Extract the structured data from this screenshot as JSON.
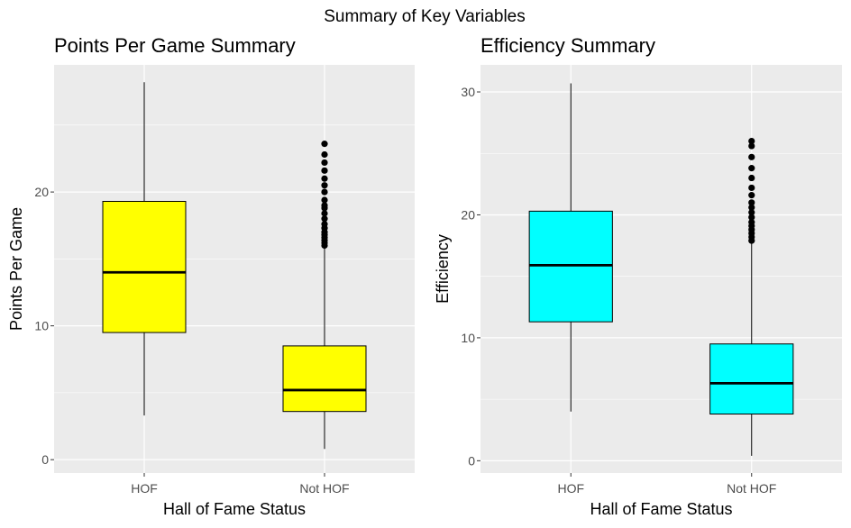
{
  "figure": {
    "title": "Summary of Key Variables"
  },
  "chart_data": [
    {
      "type": "box",
      "title": "Points Per Game Summary",
      "xlabel": "Hall of Fame Status",
      "ylabel": "Points Per Game",
      "categories": [
        "HOF",
        "Not HOF"
      ],
      "ylim": [
        -1.0,
        29.5
      ],
      "yticks": [
        0,
        10,
        20
      ],
      "fill_color": "#ffff00",
      "panel_bg": "#ebebeb",
      "boxes": [
        {
          "category": "HOF",
          "min": 3.3,
          "q1": 9.5,
          "median": 14.0,
          "q3": 19.3,
          "max": 28.2,
          "outliers": []
        },
        {
          "category": "Not HOF",
          "min": 0.8,
          "q1": 3.6,
          "median": 5.2,
          "q3": 8.5,
          "max": 15.8,
          "outliers": [
            16.0,
            16.2,
            16.4,
            16.6,
            16.8,
            17.0,
            17.3,
            17.6,
            18.0,
            18.4,
            18.8,
            19.0,
            19.4,
            20.0,
            20.5,
            21.0,
            21.6,
            22.2,
            22.8,
            23.6
          ]
        }
      ]
    },
    {
      "type": "box",
      "title": "Efficiency Summary",
      "xlabel": "Hall of Fame Status",
      "ylabel": "Efficiency",
      "categories": [
        "HOF",
        "Not HOF"
      ],
      "ylim": [
        -1.0,
        32.2
      ],
      "yticks": [
        0,
        10,
        20,
        30
      ],
      "fill_color": "#00ffff",
      "panel_bg": "#ebebeb",
      "boxes": [
        {
          "category": "HOF",
          "min": 4.0,
          "q1": 11.3,
          "median": 15.9,
          "q3": 20.3,
          "max": 30.7,
          "outliers": []
        },
        {
          "category": "Not HOF",
          "min": 0.4,
          "q1": 3.8,
          "median": 6.3,
          "q3": 9.5,
          "max": 17.7,
          "outliers": [
            17.9,
            18.2,
            18.5,
            18.8,
            19.1,
            19.4,
            19.8,
            20.2,
            20.6,
            21.0,
            21.6,
            22.2,
            23.0,
            23.8,
            24.7,
            25.6,
            26.0
          ]
        }
      ]
    }
  ]
}
